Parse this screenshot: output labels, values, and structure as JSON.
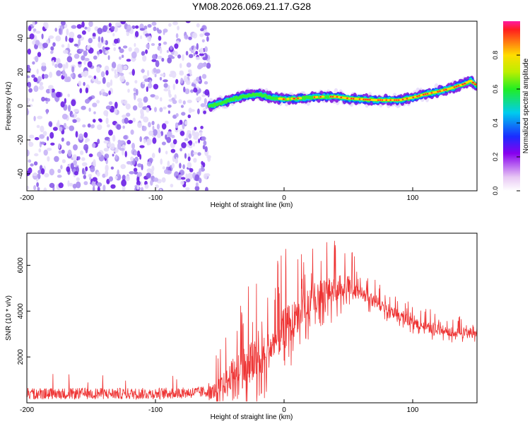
{
  "title": "YM08.2026.069.21.17.G28",
  "colors": {
    "snr_line": "#ee3333",
    "axis": "#000000",
    "scatter_low": "#e6ddfa",
    "scatter_high": "#6a1ee6"
  },
  "chart_data": [
    {
      "type": "heatmap",
      "name": "spectrogram",
      "xlabel": "Height of straight line (km)",
      "ylabel": "Frequency (Hz)",
      "xlim": [
        -200,
        150
      ],
      "ylim": [
        -50,
        50
      ],
      "xticks": [
        -200,
        -100,
        0,
        100
      ],
      "xtick_labels": [
        "-200",
        "-100",
        "0",
        "100"
      ],
      "yticks": [
        -40,
        -20,
        0,
        20,
        40
      ],
      "ytick_labels": [
        "-40",
        "-20",
        "0",
        "20",
        "40"
      ],
      "noise_region_x": [
        -200,
        -58
      ],
      "signal_track": {
        "x": [
          -58,
          -50,
          -40,
          -30,
          -20,
          -10,
          0,
          10,
          20,
          30,
          40,
          50,
          60,
          70,
          80,
          90,
          100,
          110,
          120,
          130,
          140,
          145,
          150
        ],
        "freq": [
          0,
          1.5,
          4,
          6,
          7,
          5,
          4,
          4.5,
          5,
          5.5,
          5.5,
          4.5,
          4,
          3.5,
          3.5,
          3.5,
          5,
          7,
          8.5,
          10.5,
          13,
          15,
          12
        ]
      },
      "colorbar": {
        "label": "Normalized spectral amplitude",
        "range": [
          0,
          1
        ],
        "ticks": [
          0.0,
          0.2,
          0.4,
          0.6,
          0.8
        ],
        "tick_labels": [
          "0.0",
          "0.2",
          "0.4",
          "0.6",
          "0.8"
        ]
      }
    },
    {
      "type": "line",
      "name": "snr",
      "xlabel": "Height of straight line (km)",
      "ylabel": "SNR (10 * v/v)",
      "xlim": [
        -200,
        150
      ],
      "ylim": [
        0,
        7400
      ],
      "xticks": [
        -200,
        -100,
        0,
        100
      ],
      "xtick_labels": [
        "-200",
        "-100",
        "0",
        "100"
      ],
      "yticks": [
        2000,
        4000,
        6000
      ],
      "ytick_labels": [
        "2000",
        "4000",
        "6000"
      ],
      "trend": {
        "x": [
          -200,
          -150,
          -100,
          -70,
          -55,
          -45,
          -40,
          -30,
          -20,
          -10,
          0,
          10,
          20,
          30,
          40,
          50,
          60,
          70,
          80,
          90,
          100,
          110,
          120,
          130,
          140,
          150
        ],
        "y": [
          400,
          400,
          400,
          450,
          500,
          900,
          1300,
          1600,
          1900,
          2400,
          3200,
          3800,
          4300,
          4700,
          5000,
          5200,
          4800,
          4400,
          4100,
          3800,
          3500,
          3300,
          3200,
          3100,
          3050,
          3000
        ]
      },
      "spike_envelope": {
        "x": [
          -200,
          -60,
          -45,
          -30,
          -10,
          0,
          20,
          40,
          50,
          60,
          80,
          100,
          150
        ],
        "y": [
          1300,
          1300,
          3000,
          5500,
          5500,
          6900,
          7000,
          7300,
          6800,
          6000,
          5000,
          4300,
          3600
        ]
      }
    }
  ]
}
